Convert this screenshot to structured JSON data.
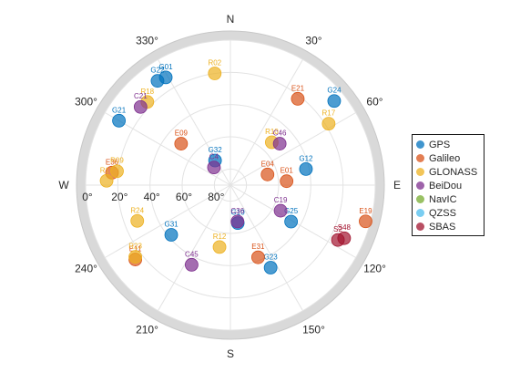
{
  "chart_data": {
    "type": "scatter",
    "subtype": "polar-skyplot",
    "compass_labels": {
      "north": "N",
      "east": "E",
      "south": "S",
      "west": "W"
    },
    "azimuth_tick_labels": [
      {
        "az": 30,
        "label": "30°"
      },
      {
        "az": 60,
        "label": "60°"
      },
      {
        "az": 120,
        "label": "120°"
      },
      {
        "az": 150,
        "label": "150°"
      },
      {
        "az": 210,
        "label": "210°"
      },
      {
        "az": 240,
        "label": "240°"
      },
      {
        "az": 300,
        "label": "300°"
      },
      {
        "az": 330,
        "label": "330°"
      }
    ],
    "elevation_tick_labels": [
      {
        "el": 0,
        "label": "0°"
      },
      {
        "el": 20,
        "label": "20°"
      },
      {
        "el": 40,
        "label": "40°"
      },
      {
        "el": 60,
        "label": "60°"
      },
      {
        "el": 80,
        "label": "80°"
      }
    ],
    "elevation_range": [
      0,
      90
    ],
    "grid": true,
    "legend_position": "right",
    "series": [
      {
        "name": "GPS",
        "color": "#0072BD",
        "points": [
          {
            "id": "G22",
            "az": 325,
            "el": 11
          },
          {
            "id": "G01",
            "az": 329,
            "el": 12
          },
          {
            "id": "G24",
            "az": 51,
            "el": 7
          },
          {
            "id": "G21",
            "az": 300,
            "el": 10
          },
          {
            "id": "G32",
            "az": 328,
            "el": 72
          },
          {
            "id": "G12",
            "az": 78,
            "el": 42
          },
          {
            "id": "G10",
            "az": 169,
            "el": 66
          },
          {
            "id": "G25",
            "az": 121,
            "el": 46
          },
          {
            "id": "G31",
            "az": 230,
            "el": 42
          },
          {
            "id": "G23",
            "az": 154,
            "el": 33
          }
        ]
      },
      {
        "name": "Galileo",
        "color": "#D95319",
        "points": [
          {
            "id": "E21",
            "az": 38,
            "el": 22
          },
          {
            "id": "E09",
            "az": 310,
            "el": 50
          },
          {
            "id": "E04",
            "az": 74,
            "el": 66
          },
          {
            "id": "E01",
            "az": 86,
            "el": 55
          },
          {
            "id": "E36",
            "az": 276,
            "el": 16
          },
          {
            "id": "E19",
            "az": 105,
            "el": 3
          },
          {
            "id": "E31",
            "az": 159,
            "el": 42
          },
          {
            "id": "E11",
            "az": 232,
            "el": 15
          }
        ]
      },
      {
        "name": "GLONASS",
        "color": "#EDB120",
        "points": [
          {
            "id": "R02",
            "az": 352,
            "el": 20
          },
          {
            "id": "R18",
            "az": 315,
            "el": 17
          },
          {
            "id": "R17",
            "az": 58,
            "el": 18
          },
          {
            "id": "R10",
            "az": 44,
            "el": 53
          },
          {
            "id": "R09",
            "az": 277,
            "el": 19
          },
          {
            "id": "R17",
            "az": 272,
            "el": 13
          },
          {
            "id": "R24",
            "az": 249,
            "el": 28
          },
          {
            "id": "R12",
            "az": 190,
            "el": 51
          },
          {
            "id": "R23",
            "az": 233,
            "el": 16
          }
        ]
      },
      {
        "name": "BeiDou",
        "color": "#7E2F8E",
        "points": [
          {
            "id": "C21",
            "az": 311,
            "el": 16
          },
          {
            "id": "C46",
            "az": 50,
            "el": 50
          },
          {
            "id": "C4",
            "az": 317,
            "el": 75
          },
          {
            "id": "C36",
            "az": 169,
            "el": 67
          },
          {
            "id": "C19",
            "az": 117,
            "el": 55
          },
          {
            "id": "C45",
            "az": 206,
            "el": 35
          }
        ]
      },
      {
        "name": "NavIC",
        "color": "#77AC30",
        "points": []
      },
      {
        "name": "QZSS",
        "color": "#4DBEEE",
        "points": []
      },
      {
        "name": "SBAS",
        "color": "#A2142F",
        "points": [
          {
            "id": "S48",
            "az": 115,
            "el": 12
          },
          {
            "id": "S2",
            "az": 117,
            "el": 15
          }
        ]
      }
    ]
  }
}
